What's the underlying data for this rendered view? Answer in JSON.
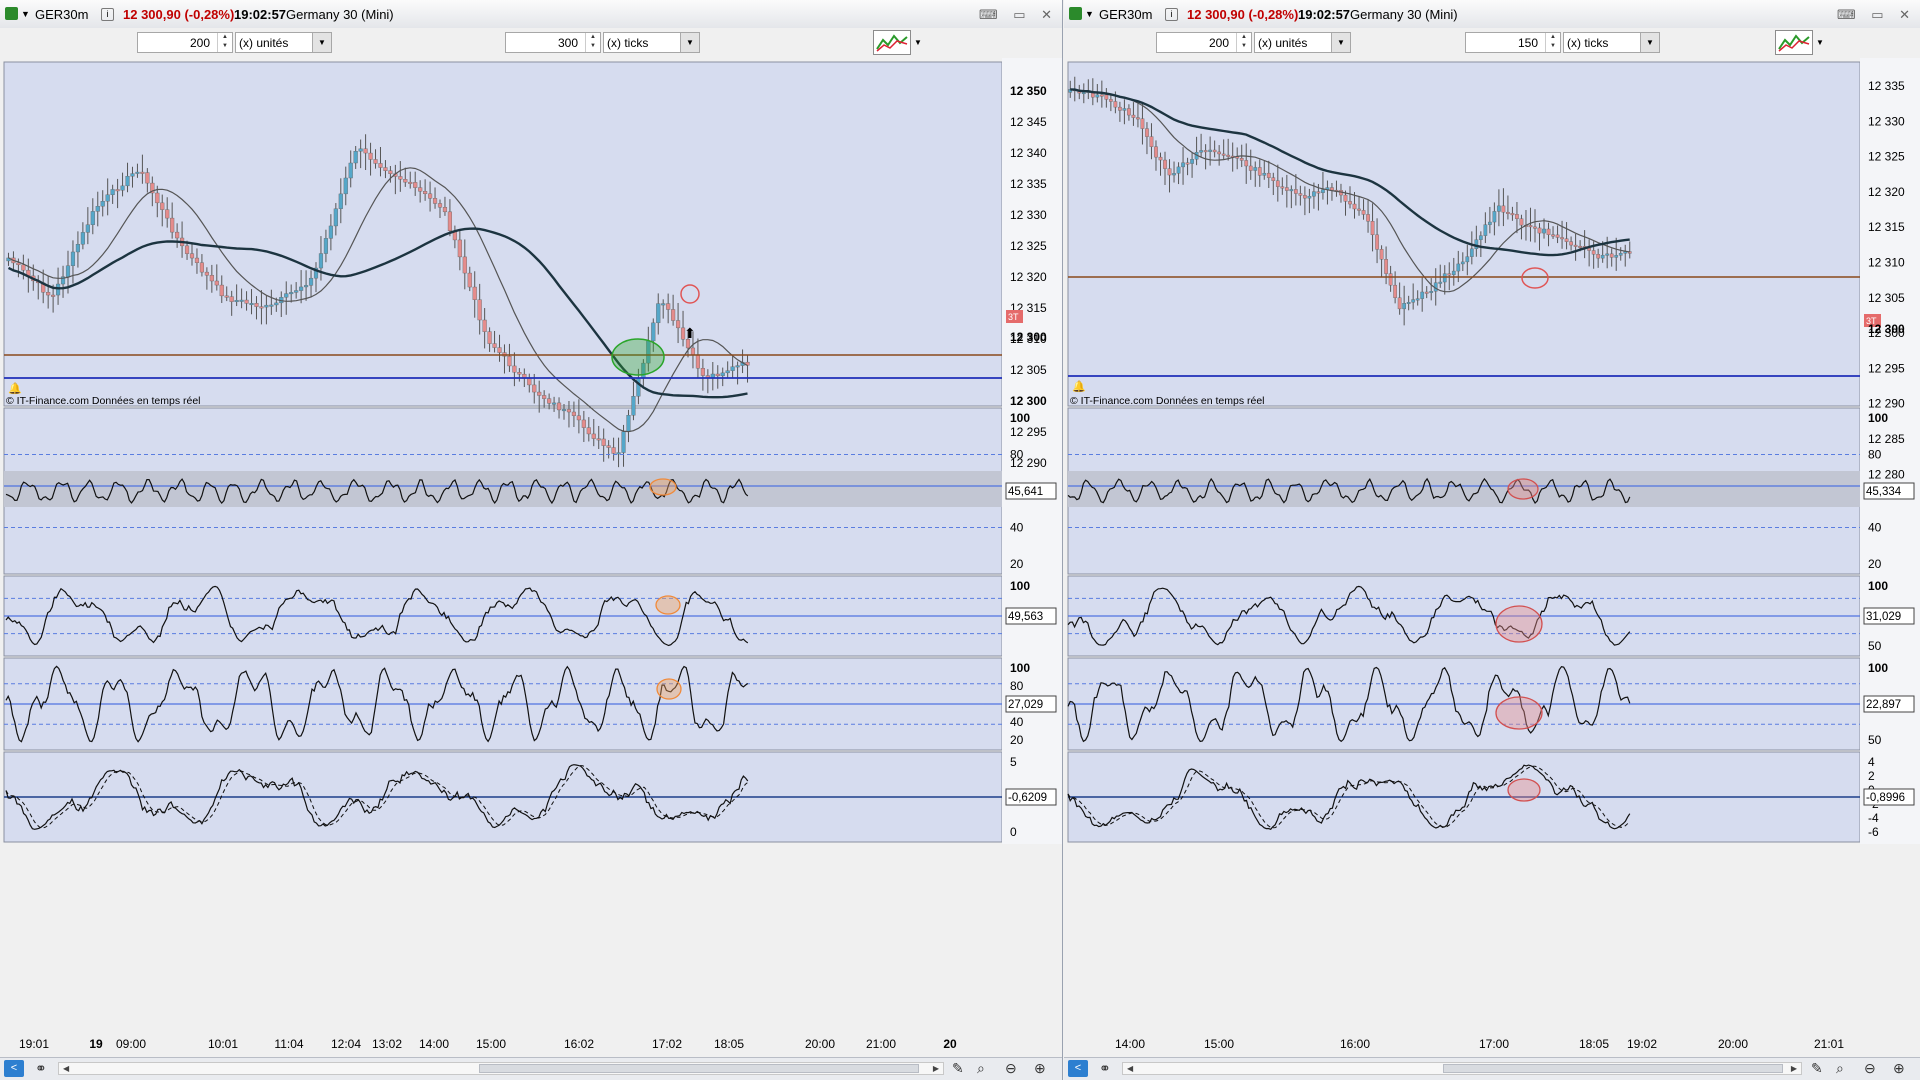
{
  "left": {
    "title": {
      "symbol": "GER30m",
      "price": "12 300,90 (-0,28%)",
      "time": "19:02:57",
      "name": "Germany 30 (Mini)"
    },
    "toolbar": {
      "units_value": "200",
      "units_label": "(x) unités",
      "ticks_value": "300",
      "ticks_label": "(x) ticks"
    },
    "copyright": "© IT-Finance.com  Données en temps réel",
    "price_axis": [
      "12 350",
      "12 345",
      "12 340",
      "12 335",
      "12 330",
      "12 325",
      "12 320",
      "12 315",
      "12 310",
      "12 305",
      "12 300",
      "12 295",
      "12 290"
    ],
    "price_current": "12 300",
    "flag_3t": "3T",
    "rsi_axis": [
      "100",
      "80",
      "60",
      "40",
      "20"
    ],
    "rsi_value": "45,641",
    "osc2_axis": [
      "100"
    ],
    "osc2_value": "49,563",
    "osc3_axis": [
      "100",
      "80",
      "60",
      "40",
      "20"
    ],
    "osc3_value": "27,029",
    "macd_axis": [
      "5",
      "0"
    ],
    "macd_value": "-0,6209",
    "time_axis": [
      "19:01",
      "19",
      "09:00",
      "10:01",
      "11:04",
      "12:04",
      "13:02",
      "14:00",
      "15:00",
      "16:02",
      "17:02",
      "18:05",
      "20:00",
      "21:00",
      "20"
    ]
  },
  "right": {
    "title": {
      "symbol": "GER30m",
      "price": "12 300,90 (-0,28%)",
      "time": "19:02:57",
      "name": "Germany 30 (Mini)"
    },
    "toolbar": {
      "units_value": "200",
      "units_label": "(x) unités",
      "ticks_value": "150",
      "ticks_label": "(x) ticks"
    },
    "copyright": "© IT-Finance.com  Données en temps réel",
    "price_axis": [
      "12 335",
      "12 330",
      "12 325",
      "12 320",
      "12 315",
      "12 310",
      "12 305",
      "12 300",
      "12 295",
      "12 290",
      "12 285",
      "12 280"
    ],
    "price_current": "12 300",
    "flag_3t": "3T",
    "rsi_axis": [
      "100",
      "80",
      "60",
      "40",
      "20"
    ],
    "rsi_value": "45,334",
    "osc2_axis": [
      "100",
      "50"
    ],
    "osc2_value": "31,029",
    "osc3_axis": [
      "100",
      "50"
    ],
    "osc3_value": "22,897",
    "macd_axis": [
      "4",
      "2",
      "0",
      "-2",
      "-4",
      "-6"
    ],
    "macd_value": "-0,8996",
    "time_axis": [
      "14:00",
      "15:00",
      "16:00",
      "17:00",
      "18:05",
      "19:02",
      "20:00",
      "21:01"
    ]
  },
  "colors": {
    "panel_bg": "#d6dcef",
    "bull": "#55a7c9",
    "bear": "#e58c8c",
    "ma_thick": "#1c3440",
    "support_blue": "#1f2fb8",
    "resistance_brown": "#8a4a1c",
    "marker_red": "#e05555",
    "marker_green": "#2aa52a"
  }
}
